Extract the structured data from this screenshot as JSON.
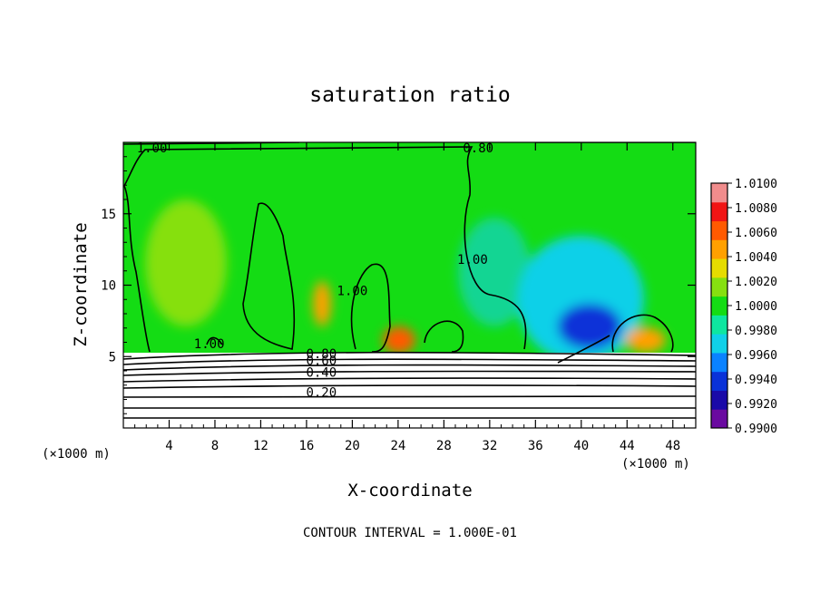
{
  "chart_data": {
    "type": "heatmap",
    "title": "saturation ratio",
    "xlabel": "X-coordinate",
    "ylabel": "Z-coordinate",
    "x_unit_left": "(×1000 m)",
    "x_unit_right": "(×1000 m)",
    "xlim": [
      0,
      50
    ],
    "ylim": [
      0,
      20
    ],
    "x_ticks": [
      4,
      8,
      12,
      16,
      20,
      24,
      28,
      32,
      36,
      40,
      44,
      48
    ],
    "y_ticks": [
      5,
      10,
      15
    ],
    "footer": "CONTOUR INTERVAL = 1.000E-01",
    "colorbar": {
      "min": 0.99,
      "max": 1.01,
      "labels": [
        "1.0100",
        "1.0080",
        "1.0060",
        "1.0040",
        "1.0020",
        "1.0000",
        "0.9980",
        "0.9960",
        "0.9940",
        "0.9920",
        "0.9900"
      ],
      "bands": [
        "#6a0aa0",
        "#1a0aa8",
        "#0a32d8",
        "#0a82ff",
        "#10d0e8",
        "#0ee6a0",
        "#14dc14",
        "#86e010",
        "#e6dc00",
        "#ffa000",
        "#ff5a00",
        "#f01414",
        "#f08c8c"
      ]
    },
    "contour_labels": [
      {
        "text": "1.00",
        "x": 2.5,
        "y": 19.3
      },
      {
        "text": "0.80",
        "x": 31.0,
        "y": 19.3
      },
      {
        "text": "1.00",
        "x": 30.5,
        "y": 11.5
      },
      {
        "text": "1.00",
        "x": 20.0,
        "y": 9.3
      },
      {
        "text": "1.00",
        "x": 7.5,
        "y": 5.6
      },
      {
        "text": "0.80",
        "x": 17.3,
        "y": 4.9
      },
      {
        "text": "0.60",
        "x": 17.3,
        "y": 4.4
      },
      {
        "text": "0.40",
        "x": 17.3,
        "y": 3.6
      },
      {
        "text": "0.20",
        "x": 17.3,
        "y": 2.2
      }
    ]
  }
}
